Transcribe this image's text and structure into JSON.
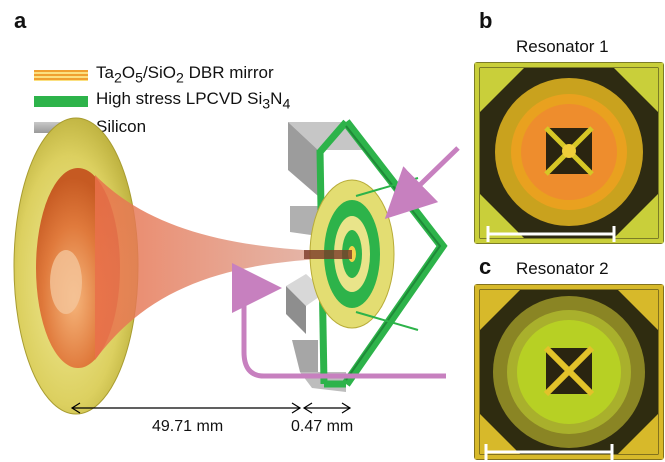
{
  "panels": {
    "a": "a",
    "b": "b",
    "c": "c"
  },
  "legend": [
    {
      "label_html": "Ta<sub>2</sub>O<sub>5</sub>/SiO<sub>2</sub> DBR mirror",
      "swatch": "dbr-stripes"
    },
    {
      "label_html": "High stress LPCVD Si<sub>3</sub>N<sub>4</sub>",
      "swatch": "green"
    },
    {
      "label_html": "Silicon",
      "swatch": "gray"
    }
  ],
  "resonators": {
    "b_title": "Resonator 1",
    "c_title": "Resonator 2"
  },
  "dimensions": {
    "mirror_distance": "49.71 mm",
    "gap_distance": "0.47 mm"
  },
  "colors": {
    "dbr_orange": "#f0a030",
    "sin_green": "#2db34a",
    "silicon_gray": "#a8a8a8",
    "arrow_purple": "#c780bf"
  }
}
